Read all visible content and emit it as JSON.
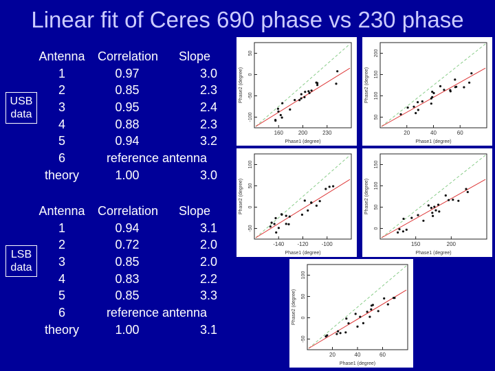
{
  "title": "Linear fit of Ceres 690 phase vs 230 phase",
  "usb": {
    "side_label": "USB data",
    "header": {
      "antenna": "Antenna",
      "correlation": "Correlation",
      "slope": "Slope"
    },
    "rows": [
      {
        "antenna": "1",
        "correlation": "0.97",
        "slope": "3.0"
      },
      {
        "antenna": "2",
        "correlation": "0.85",
        "slope": "2.3"
      },
      {
        "antenna": "3",
        "correlation": "0.95",
        "slope": "2.4"
      },
      {
        "antenna": "4",
        "correlation": "0.88",
        "slope": "2.3"
      },
      {
        "antenna": "5",
        "correlation": "0.94",
        "slope": "3.2"
      },
      {
        "antenna": "6",
        "reference": "reference antenna"
      },
      {
        "antenna": "theory",
        "correlation": "1.00",
        "slope": "3.0"
      }
    ]
  },
  "lsb": {
    "side_label": "LSB data",
    "header": {
      "antenna": "Antenna",
      "correlation": "Correlation",
      "slope": "Slope"
    },
    "rows": [
      {
        "antenna": "1",
        "correlation": "0.94",
        "slope": "3.1"
      },
      {
        "antenna": "2",
        "correlation": "0.72",
        "slope": "2.0"
      },
      {
        "antenna": "3",
        "correlation": "0.85",
        "slope": "2.0"
      },
      {
        "antenna": "4",
        "correlation": "0.83",
        "slope": "2.2"
      },
      {
        "antenna": "5",
        "correlation": "0.85",
        "slope": "3.3"
      },
      {
        "antenna": "6",
        "reference": "reference antenna"
      },
      {
        "antenna": "theory",
        "correlation": "1.00",
        "slope": "3.1"
      }
    ]
  },
  "plots": [
    {
      "ylabel": "Phase2 (degree)",
      "xlabel": "Phase1 (degree)",
      "xticks": [
        "160",
        "200",
        "230"
      ],
      "yticks": [
        "50",
        "0",
        "-50",
        "-100"
      ]
    },
    {
      "ylabel": "Phase2 (degree)",
      "xlabel": "Phase1 (degree)",
      "xticks": [
        "20",
        "40",
        "60"
      ],
      "yticks": [
        "200",
        "150",
        "100",
        "50"
      ]
    },
    {
      "ylabel": "Phase2 (degree)",
      "xlabel": "Phase1 (degree)",
      "xticks": [
        "-140",
        "-120",
        "-100"
      ],
      "yticks": [
        "100",
        "50",
        "0",
        "-50"
      ]
    },
    {
      "ylabel": "Phase2 (degree)",
      "xlabel": "Phase1 (degree)",
      "xticks": [
        "150",
        "200"
      ],
      "yticks": [
        "150",
        "100",
        "50",
        "0"
      ]
    },
    {
      "ylabel": "Phase2 (degree)",
      "xlabel": "Phase1 (degree)",
      "xticks": [
        "20",
        "40",
        "60"
      ],
      "yticks": [
        "100",
        "50",
        "0",
        "-50"
      ]
    }
  ],
  "colors": {
    "background": "#000099",
    "title": "#ccccff",
    "text": "#ffffff",
    "fit_line": "#dd3333",
    "theory_line": "#88cc88"
  }
}
